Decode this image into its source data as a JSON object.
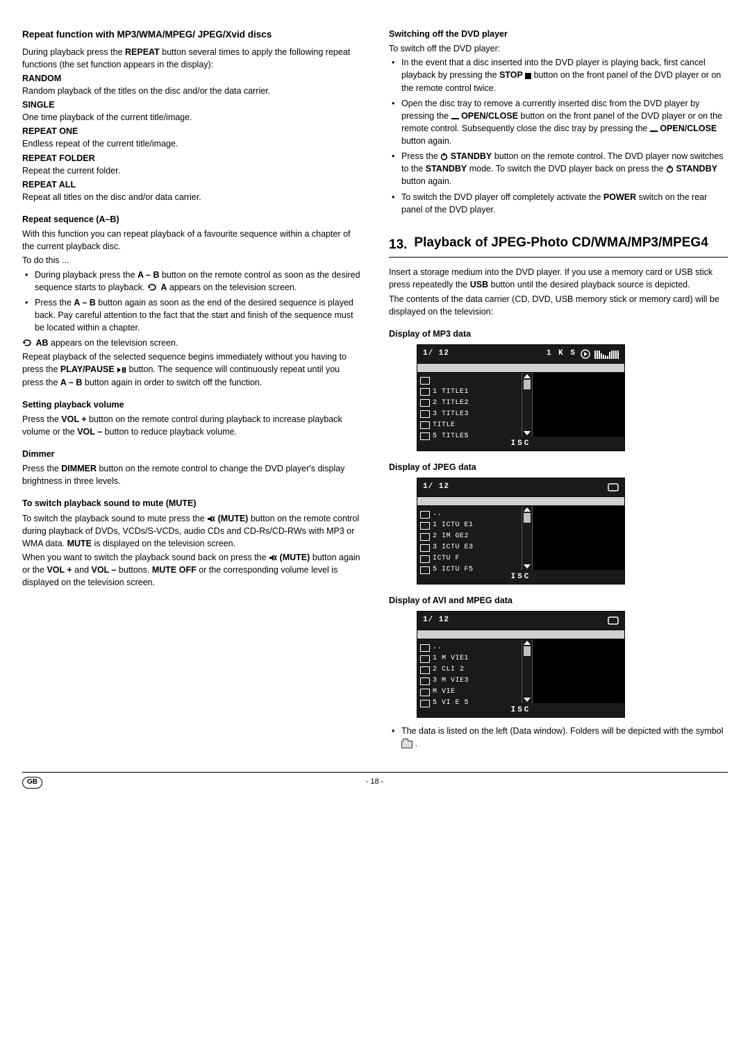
{
  "left": {
    "h1": "Repeat function with MP3/WMA/MPEG/ JPEG/Xvid discs",
    "intro1": "During playback press the ",
    "intro1b": "REPEAT",
    "intro1c": " button several times to apply the following repeat functions (the set function appears in the display):",
    "modes": [
      {
        "label": "RANDOM",
        "desc": "Random playback of the titles on the disc and/or the data carrier."
      },
      {
        "label": "SINGLE",
        "desc": "One time playback of the current title/image."
      },
      {
        "label": "REPEAT ONE",
        "desc": "Endless repeat of the current title/image."
      },
      {
        "label": "REPEAT FOLDER",
        "desc": "Repeat the current folder."
      },
      {
        "label": "REPEAT ALL",
        "desc": "Repeat all titles on the disc and/or data carrier."
      }
    ],
    "h2a": "Repeat sequence (A–B)",
    "abIntro": "With this function you can repeat playback of a favourite sequence within a chapter of the current playback disc.",
    "abTodo": "To do this ...",
    "abLi1a": "During playback press the ",
    "abLi1b": "A – B",
    "abLi1c": " button on the remote control as soon as the desired sequence starts to playback. ",
    "abLi1d": " A",
    "abLi1e": " appears on the television screen.",
    "abLi2a": "Press the ",
    "abLi2b": "A – B",
    "abLi2c": " button again as soon as the end of the desired sequence is played back. Pay careful attention to the fact that the start and finish of the sequence must be located within a chapter.",
    "abLine3b": " AB",
    "abLine3c": " appears on the television screen.",
    "abPara2a": "Repeat playback of the selected sequence begins immediately without you having to press the ",
    "abPara2b": "PLAY/PAUSE ",
    "abPara2c": " button. The sequence will continuously repeat until you press the ",
    "abPara2d": "A – B",
    "abPara2e": " button again in order to switch off the function.",
    "h2b": "Setting playback volume",
    "volPara_a": "Press the ",
    "volPara_b": "VOL +",
    "volPara_c": " button on the remote control during playback to increase playback volume or the ",
    "volPara_d": "VOL –",
    "volPara_e": " button to reduce playback volume.",
    "h2c": "Dimmer",
    "dimPara_a": "Press the ",
    "dimPara_b": "DIMMER",
    "dimPara_c": " button on the remote control to change the DVD player's display brightness in three levels.",
    "h2d": "To switch playback sound to mute (MUTE)",
    "muteP1a": "To switch the playback sound to mute press the ",
    "muteP1b": " (MUTE)",
    "muteP1c": " button on the remote control during playback of DVDs, VCDs/S-VCDs, audio CDs and CD-Rs/CD-RWs with MP3 or WMA data. ",
    "muteP1d": "MUTE",
    "muteP1e": " is displayed on the television screen.",
    "muteP2a": "When you want to switch the playback sound back on press the ",
    "muteP2b": " (MUTE) ",
    "muteP2c": " button again or the ",
    "muteP2d": "VOL +",
    "muteP2e": " and ",
    "muteP2f": "VOL –",
    "muteP2g": " buttons. ",
    "muteP2h": "MUTE OFF",
    "muteP2i": " or the corresponding volume level is displayed on the television screen."
  },
  "right": {
    "h2a": "Switching off the DVD player",
    "offIntro": "To switch off the DVD player:",
    "offLi1a": "In the event that a disc inserted into the DVD player is playing back, first cancel playback by pressing the ",
    "offLi1b": "STOP ",
    "offLi1c": " button on the front panel of the DVD player or on the remote control twice.",
    "offLi2a": "Open the disc tray to remove a currently inserted disc from the DVD player by pressing the ",
    "offLi2b": " OPEN/CLOSE",
    "offLi2c": " button on the front panel of the DVD player or on the remote control. Subsequently close the disc tray by pressing the ",
    "offLi2d": " OPEN/CLOSE",
    "offLi2e": " button again.",
    "offLi3a": "Press the ",
    "offLi3b": " STANDBY",
    "offLi3c": " button on the remote control. The DVD player now switches to the ",
    "offLi3d": "STANDBY",
    "offLi3e": " mode. To switch the DVD player back on press the ",
    "offLi3f": " STANDBY",
    "offLi3g": " button again.",
    "offLi4a": "To switch the DVD player off completely activate the ",
    "offLi4b": "POWER",
    "offLi4c": " switch on the rear panel of the DVD player.",
    "sectionNum": "13.",
    "sectionTitle": "Playback of JPEG-Photo CD/WMA/MP3/MPEG4",
    "s13p1a": "Insert a storage medium into the DVD player. If you use a memory card or USB stick press repeatedly the ",
    "s13p1b": "USB",
    "s13p1c": " button until the desired playback source is depicted.",
    "s13p2": "The contents of the data carrier (CD, DVD, USB memory stick or memory card) will be displayed on the television:",
    "dispMp3": "Display of MP3 data",
    "dispJpeg": "Display of JPEG data",
    "dispAvi": "Display of AVI and MPEG data",
    "footnote_a": "The data is listed on the left (Data window). Folders will be depicted with the symbol ",
    "footnote_b": " .",
    "screens": {
      "counter": "1/ 12",
      "footer": "ISC",
      "mp3": {
        "topExtra": "1  K  S",
        "items": [
          "1 TITLE1",
          "2 TITLE2",
          "3 TITLE3",
          "  TITLE",
          "5 TITLE5"
        ],
        "eqHeights": [
          12,
          12,
          12,
          8,
          6,
          5,
          4,
          10,
          12,
          12,
          12,
          12
        ]
      },
      "jpeg": {
        "items": [
          "..",
          "1  ICTU E1",
          "2 IM  GE2",
          "3  ICTU E3",
          "   ICTU F",
          "5  ICTU F5"
        ]
      },
      "avi": {
        "items": [
          "..",
          "1 M VIE1",
          "2 CLI 2",
          "3 M VIE3",
          "  M VIE",
          "5 VI E 5"
        ]
      }
    }
  },
  "footer": {
    "left": "GB",
    "center": "- 18 -"
  }
}
